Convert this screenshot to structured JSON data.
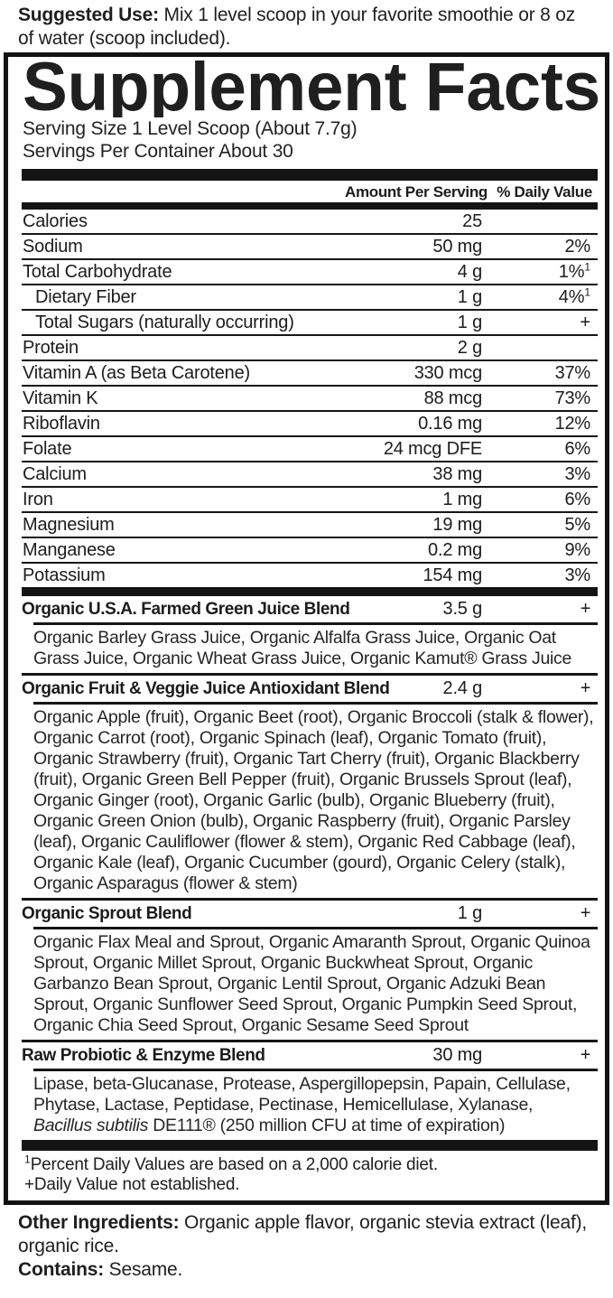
{
  "suggested_use": {
    "label": "Suggested Use:",
    "text": " Mix 1 level scoop in your favorite smoothie or 8 oz of water (scoop included)."
  },
  "panel": {
    "title": "Supplement Facts",
    "serving_size": "Serving Size 1 Level Scoop (About 7.7g)",
    "servings_per_container": "Servings Per Container About 30",
    "col_amount": "Amount Per Serving",
    "col_dv": "% Daily Value",
    "rows": [
      {
        "name": "Calories",
        "amount": "25",
        "dv": "",
        "dv_sup": ""
      },
      {
        "name": "Sodium",
        "amount": "50 mg",
        "dv": "2%",
        "dv_sup": ""
      },
      {
        "name": "Total Carbohydrate",
        "amount": "4 g",
        "dv": "1%",
        "dv_sup": "1"
      },
      {
        "name": "Dietary Fiber",
        "amount": "1 g",
        "dv": "4%",
        "dv_sup": "1"
      },
      {
        "name": "Total Sugars (naturally occurring)",
        "amount": "1 g",
        "dv": "+",
        "dv_sup": ""
      },
      {
        "name": "Protein",
        "amount": "2 g",
        "dv": "",
        "dv_sup": ""
      },
      {
        "name": "Vitamin A (as Beta Carotene)",
        "amount": "330 mcg",
        "dv": "37%",
        "dv_sup": ""
      },
      {
        "name": "Vitamin K",
        "amount": "88 mcg",
        "dv": "73%",
        "dv_sup": ""
      },
      {
        "name": "Riboflavin",
        "amount": "0.16 mg",
        "dv": "12%",
        "dv_sup": ""
      },
      {
        "name": "Folate",
        "amount": "24 mcg DFE",
        "dv": "6%",
        "dv_sup": ""
      },
      {
        "name": "Calcium",
        "amount": "38 mg",
        "dv": "3%",
        "dv_sup": ""
      },
      {
        "name": "Iron",
        "amount": "1 mg",
        "dv": "6%",
        "dv_sup": ""
      },
      {
        "name": "Magnesium",
        "amount": "19 mg",
        "dv": "5%",
        "dv_sup": ""
      },
      {
        "name": "Manganese",
        "amount": "0.2 mg",
        "dv": "9%",
        "dv_sup": ""
      },
      {
        "name": "Potassium",
        "amount": "154 mg",
        "dv": "3%",
        "dv_sup": ""
      }
    ],
    "blends": [
      {
        "name": "Organic U.S.A. Farmed Green Juice Blend",
        "amount": "3.5 g",
        "dv": "+",
        "ingredients": "Organic Barley Grass Juice, Organic Alfalfa Grass Juice, Organic Oat Grass Juice, Organic Wheat Grass Juice, Organic Kamut® Grass Juice"
      },
      {
        "name": "Organic Fruit & Veggie Juice Antioxidant Blend",
        "amount": "2.4 g",
        "dv": "+",
        "ingredients": "Organic Apple (fruit), Organic Beet (root), Organic Broccoli (stalk & flower), Organic Carrot (root), Organic Spinach (leaf), Organic Tomato (fruit), Organic Strawberry (fruit), Organic Tart Cherry (fruit), Organic Blackberry (fruit), Organic Green Bell Pepper (fruit), Organic Brussels Sprout (leaf), Organic Ginger (root), Organic Garlic (bulb), Organic Blueberry (fruit), Organic Green Onion (bulb), Organic Raspberry (fruit), Organic Parsley (leaf), Organic Cauliflower (flower & stem), Organic Red Cabbage (leaf), Organic Kale (leaf), Organic Cucumber (gourd), Organic Celery (stalk), Organic Asparagus (flower & stem)"
      },
      {
        "name": "Organic Sprout Blend",
        "amount": "1 g",
        "dv": "+",
        "ingredients": "Organic Flax Meal and Sprout, Organic Amaranth Sprout, Organic Quinoa Sprout, Organic Millet Sprout, Organic Buckwheat Sprout, Organic Garbanzo Bean Sprout, Organic Lentil Sprout, Organic Adzuki Bean Sprout, Organic Sunflower Seed Sprout, Organic Pumpkin Seed Sprout, Organic Chia Seed Sprout, Organic Sesame Seed Sprout"
      },
      {
        "name": "Raw Probiotic & Enzyme Blend",
        "amount": "30 mg",
        "dv": "+",
        "ingredients_pre": "Lipase, beta-Glucanase, Protease, Aspergillopepsin, Papain, Cellulase, Phytase, Lactase, Peptidase, Pectinase, Hemicellulase, Xylanase, ",
        "ingredients_italic": "Bacillus subtilis",
        "ingredients_post": " DE111® (250 million CFU at time of expiration)"
      }
    ],
    "footnotes": {
      "sup": "1",
      "line1": "Percent Daily Values are based on a 2,000 calorie diet.",
      "line2": "+Daily Value not established."
    }
  },
  "other_ingredients": {
    "label": "Other Ingredients:",
    "text": " Organic apple flavor, organic stevia extract (leaf), organic rice."
  },
  "contains": {
    "label": "Contains:",
    "text": " Sesame."
  }
}
